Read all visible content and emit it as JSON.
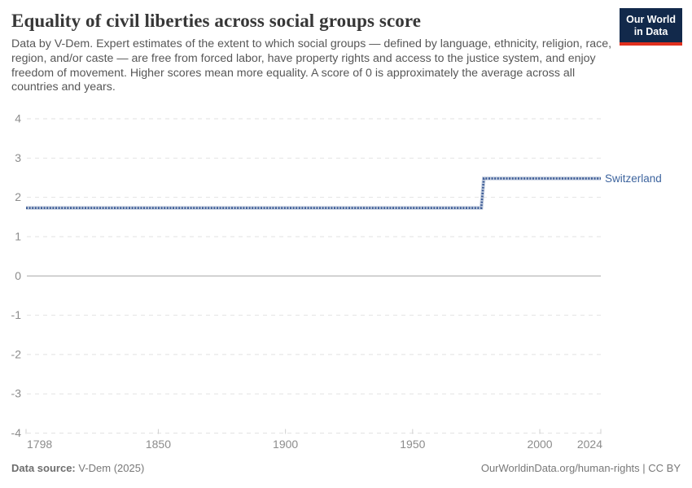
{
  "header": {
    "title": "Equality of civil liberties across social groups score",
    "subtitle": "Data by V-Dem. Expert estimates of the extent to which social groups — defined by language, ethnicity, religion, race, region, and/or caste — are free from forced labor, have property rights and access to the justice system, and enjoy freedom of movement. Higher scores mean more equality. A score of 0 is approximately the average across all countries and years.",
    "logo": {
      "line1": "Our World",
      "line2": "in Data"
    }
  },
  "chart_data": {
    "type": "line",
    "title": "Equality of civil liberties across social groups score",
    "xlabel": "",
    "ylabel": "",
    "xlim": [
      1798,
      2024
    ],
    "ylim": [
      -4,
      4
    ],
    "xticks": [
      1798,
      1850,
      1900,
      1950,
      2000,
      2024
    ],
    "yticks": [
      4,
      3,
      2,
      1,
      0,
      -1,
      -2,
      -3,
      -4
    ],
    "grid": "horizontal-dashed",
    "zero_line": true,
    "legend_position": "end-of-line",
    "series": [
      {
        "name": "Switzerland",
        "color": "#3d5c96",
        "label_color": "#3d649e",
        "points": [
          [
            1798,
            1.73
          ],
          [
            1977,
            1.73
          ],
          [
            1978,
            2.48
          ],
          [
            2024,
            2.48
          ]
        ]
      }
    ]
  },
  "footer": {
    "source_label": "Data source:",
    "source_value": " V-Dem (2025)",
    "right_text": "OurWorldinData.org/human-rights | CC BY"
  },
  "colors": {
    "title": "#373737",
    "subtitle": "#575757",
    "axis_label": "#8c8c8c",
    "gridline": "#e2e2e2",
    "zero_line": "#a5a5a5",
    "tick_mark": "#cfcfcf",
    "logo_bg": "#12294b",
    "logo_accent": "#e0301e",
    "footer_text": "#787878"
  }
}
